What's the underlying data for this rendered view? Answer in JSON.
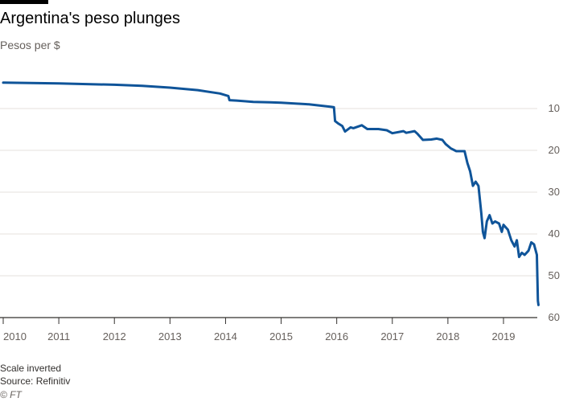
{
  "header": {
    "title": "Argentina's peso plunges",
    "subtitle": "Pesos per $"
  },
  "footer": {
    "note": "Scale inverted",
    "source": "Source: Refinitiv",
    "credit": "© FT"
  },
  "colors": {
    "line": "#0f5499",
    "grid": "#e6e2de",
    "axis": "#33302e"
  },
  "chart_data": {
    "type": "line",
    "title": "Argentina's peso plunges",
    "ylabel": "Pesos per $",
    "inverted_y": true,
    "ylim": [
      0,
      60
    ],
    "yticks": [
      10,
      20,
      30,
      40,
      50,
      60
    ],
    "xlim": [
      2010.0,
      2019.8
    ],
    "xticks": [
      2010,
      2011,
      2012,
      2013,
      2014,
      2015,
      2016,
      2017,
      2018,
      2019
    ],
    "grid": true,
    "series": [
      {
        "points": [
          [
            2010.0,
            3.8
          ],
          [
            2010.5,
            3.9
          ],
          [
            2011.0,
            4.0
          ],
          [
            2011.5,
            4.15
          ],
          [
            2012.0,
            4.3
          ],
          [
            2012.5,
            4.55
          ],
          [
            2013.0,
            5.0
          ],
          [
            2013.5,
            5.6
          ],
          [
            2013.9,
            6.4
          ],
          [
            2014.05,
            7.0
          ],
          [
            2014.07,
            8.0
          ],
          [
            2014.2,
            8.1
          ],
          [
            2014.5,
            8.4
          ],
          [
            2014.8,
            8.5
          ],
          [
            2015.0,
            8.6
          ],
          [
            2015.5,
            9.0
          ],
          [
            2015.9,
            9.6
          ],
          [
            2015.95,
            9.7
          ],
          [
            2015.97,
            13.0
          ],
          [
            2016.02,
            13.5
          ],
          [
            2016.1,
            14.2
          ],
          [
            2016.15,
            15.5
          ],
          [
            2016.25,
            14.5
          ],
          [
            2016.3,
            14.7
          ],
          [
            2016.45,
            14.0
          ],
          [
            2016.55,
            14.9
          ],
          [
            2016.75,
            14.9
          ],
          [
            2016.9,
            15.2
          ],
          [
            2017.0,
            15.9
          ],
          [
            2017.2,
            15.4
          ],
          [
            2017.25,
            15.8
          ],
          [
            2017.4,
            15.4
          ],
          [
            2017.45,
            16.0
          ],
          [
            2017.55,
            17.5
          ],
          [
            2017.7,
            17.4
          ],
          [
            2017.8,
            17.2
          ],
          [
            2017.9,
            17.5
          ],
          [
            2017.96,
            18.5
          ],
          [
            2018.05,
            19.5
          ],
          [
            2018.15,
            20.2
          ],
          [
            2018.3,
            20.2
          ],
          [
            2018.35,
            23.0
          ],
          [
            2018.4,
            25.0
          ],
          [
            2018.45,
            28.5
          ],
          [
            2018.5,
            27.5
          ],
          [
            2018.55,
            28.5
          ],
          [
            2018.6,
            35.0
          ],
          [
            2018.63,
            39.5
          ],
          [
            2018.66,
            41.0
          ],
          [
            2018.7,
            37.0
          ],
          [
            2018.75,
            35.5
          ],
          [
            2018.8,
            37.5
          ],
          [
            2018.85,
            37.0
          ],
          [
            2018.92,
            37.5
          ],
          [
            2018.97,
            39.5
          ],
          [
            2019.0,
            37.8
          ],
          [
            2019.08,
            39.0
          ],
          [
            2019.14,
            41.5
          ],
          [
            2019.2,
            43.0
          ],
          [
            2019.24,
            41.5
          ],
          [
            2019.28,
            45.5
          ],
          [
            2019.33,
            44.5
          ],
          [
            2019.38,
            45.0
          ],
          [
            2019.45,
            44.0
          ],
          [
            2019.5,
            42.0
          ],
          [
            2019.55,
            42.5
          ],
          [
            2019.58,
            44.0
          ],
          [
            2019.6,
            45.0
          ],
          [
            2019.62,
            56.0
          ],
          [
            2019.63,
            57.0
          ]
        ]
      }
    ]
  }
}
